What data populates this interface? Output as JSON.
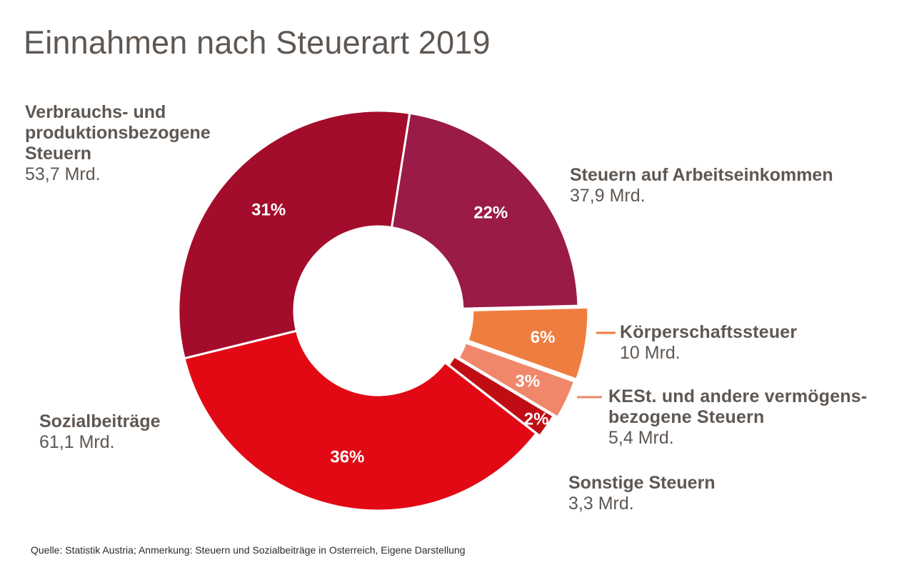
{
  "header": {
    "title": "Einnahmen nach Steuerart 2019"
  },
  "footer": {
    "source": "Quelle: Statistik Austria; Anmerkung: Steuern und Sozialbeiträge in Osterreich, Eigene Darstellung"
  },
  "chart_data": {
    "type": "pie",
    "variant": "donut",
    "title": "Einnahmen nach Steuerart 2019",
    "unit": "Mrd.",
    "start_category": "Steuern auf Arbeitseinkommen",
    "direction": "clockwise",
    "slices": [
      {
        "name": "Steuern auf Arbeitseinkommen",
        "value": 37.9,
        "value_label": "37,9 Mrd.",
        "percent_label": "22%",
        "color": "#9a1b48",
        "exploded": false
      },
      {
        "name": "Körperschaftssteuer",
        "value": 10,
        "value_label": "10 Mrd.",
        "percent_label": "6%",
        "color": "#ef7d3f",
        "exploded": true
      },
      {
        "name": "KESt. und andere vermögens-bezogene Steuern",
        "name_lines": [
          "KESt. und andere vermögens-",
          "bezogene Steuern"
        ],
        "value": 5.4,
        "value_label": "5,4 Mrd.",
        "percent_label": "3%",
        "color": "#f0876b",
        "exploded": true
      },
      {
        "name": "Sonstige Steuern",
        "value": 3.3,
        "value_label": "3,3 Mrd.",
        "percent_label": "2%",
        "color": "#c00d14",
        "exploded": true
      },
      {
        "name": "Sozialbeiträge",
        "value": 61.1,
        "value_label": "61,1 Mrd.",
        "percent_label": "36%",
        "color": "#e20914",
        "exploded": false
      },
      {
        "name": "Verbrauchs- und produktionsbezogene Steuern",
        "name_lines": [
          "Verbrauchs- und",
          "produktionsbezogene",
          "Steuern"
        ],
        "value": 53.7,
        "value_label": "53,7 Mrd.",
        "percent_label": "31%",
        "color": "#a30d2b",
        "exploded": false
      }
    ],
    "legend": "labels placed around the donut"
  },
  "labels": {
    "verbrauch": {
      "line1": "Verbrauchs- und",
      "line2": "produktionsbezogene",
      "line3": "Steuern",
      "value": "53,7 Mrd."
    },
    "arbeit": {
      "name": "Steuern auf Arbeitseinkommen",
      "value": "37,9 Mrd."
    },
    "koerperschaft": {
      "name": "Körperschaftssteuer",
      "value": "10 Mrd."
    },
    "kest": {
      "line1": "KESt. und andere vermögens-",
      "line2": "bezogene Steuern",
      "value": "5,4 Mrd."
    },
    "sozial": {
      "name": "Sozialbeiträge",
      "value": "61,1 Mrd."
    },
    "sonstige": {
      "name": "Sonstige Steuern",
      "value": "3,3 Mrd."
    }
  },
  "colors": {
    "text": "#5f5752",
    "leader_orange": "#ef7d3f",
    "leader_salmon": "#f0876b"
  }
}
